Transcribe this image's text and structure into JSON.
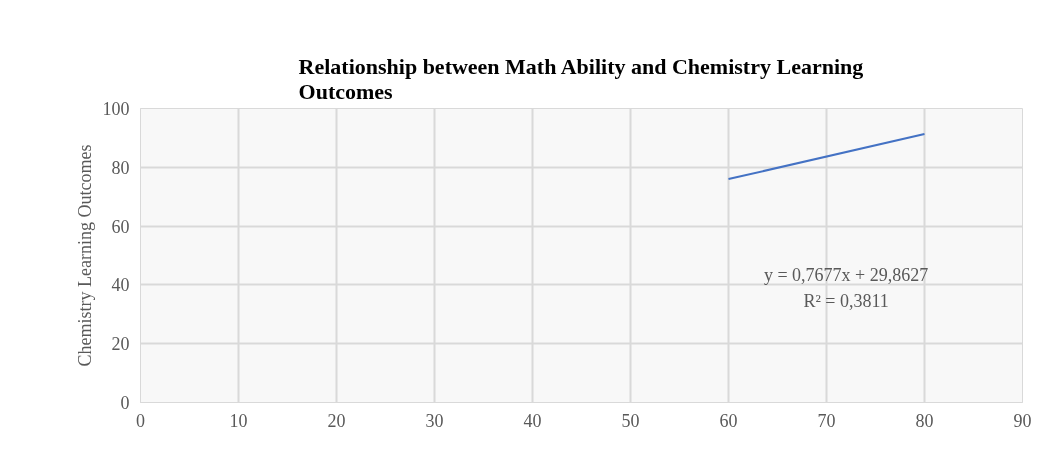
{
  "chart_data": {
    "type": "line",
    "title": "Relationship between Math Ability and Chemistry Learning Outcomes",
    "ylabel": "Chemistry Learning Outcomes",
    "x": [
      60,
      80
    ],
    "series": [
      {
        "color": "#4472c4",
        "values": [
          76,
          91.3
        ]
      }
    ],
    "xlim": [
      0,
      90
    ],
    "xticks": [
      0,
      10,
      20,
      30,
      40,
      50,
      60,
      70,
      80,
      90
    ],
    "ylim": [
      0,
      100
    ],
    "yticks": [
      0,
      20,
      40,
      60,
      80,
      100
    ],
    "grid": true,
    "marker": "none",
    "line_style": "solid",
    "annotations": [
      "y = 0,7677x + 29,8627",
      "R² = 0,3811"
    ]
  }
}
